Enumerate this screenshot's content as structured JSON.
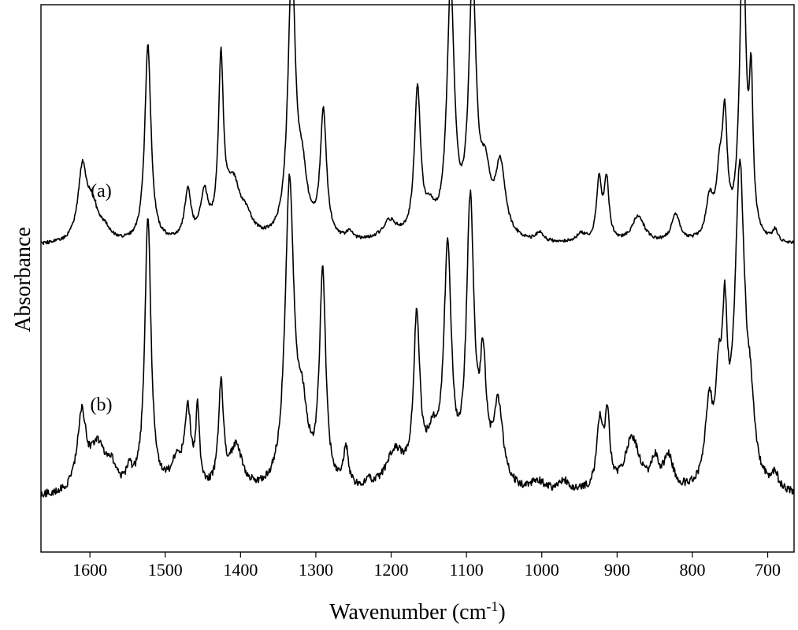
{
  "chart_data": {
    "type": "line",
    "title": "",
    "xlabel": "Wavenumber (cm",
    "xlabel_sup": "-1",
    "xlabel_close": ")",
    "ylabel": "Absorbance",
    "xlim": [
      1665,
      665
    ],
    "x_reversed": true,
    "y_ticks_shown": false,
    "grid": false,
    "x_ticks": [
      1600,
      1500,
      1400,
      1300,
      1200,
      1100,
      1000,
      900,
      800,
      700
    ],
    "x_tick_labels": [
      "1600",
      "1500",
      "1400",
      "1300",
      "1200",
      "1100",
      "1000",
      "900",
      "800",
      "700"
    ],
    "series": [
      {
        "label": "(a)",
        "baseline": 0.56,
        "peaks": [
          {
            "x": 1610,
            "h": 0.13,
            "w": 7
          },
          {
            "x": 1597,
            "h": 0.06,
            "w": 9
          },
          {
            "x": 1580,
            "h": 0.02,
            "w": 10
          },
          {
            "x": 1523,
            "h": 0.36,
            "w": 5
          },
          {
            "x": 1470,
            "h": 0.09,
            "w": 5
          },
          {
            "x": 1448,
            "h": 0.08,
            "w": 6
          },
          {
            "x": 1426,
            "h": 0.31,
            "w": 4
          },
          {
            "x": 1410,
            "h": 0.1,
            "w": 12
          },
          {
            "x": 1392,
            "h": 0.03,
            "w": 10
          },
          {
            "x": 1332,
            "h": 0.49,
            "w": 6
          },
          {
            "x": 1318,
            "h": 0.1,
            "w": 8
          },
          {
            "x": 1290,
            "h": 0.23,
            "w": 5
          },
          {
            "x": 1255,
            "h": 0.015,
            "w": 5
          },
          {
            "x": 1202,
            "h": 0.035,
            "w": 12
          },
          {
            "x": 1165,
            "h": 0.27,
            "w": 5
          },
          {
            "x": 1148,
            "h": 0.04,
            "w": 8
          },
          {
            "x": 1121,
            "h": 0.45,
            "w": 6
          },
          {
            "x": 1092,
            "h": 0.46,
            "w": 6
          },
          {
            "x": 1075,
            "h": 0.1,
            "w": 8
          },
          {
            "x": 1055,
            "h": 0.13,
            "w": 8
          },
          {
            "x": 1003,
            "h": 0.015,
            "w": 6
          },
          {
            "x": 948,
            "h": 0.015,
            "w": 8
          },
          {
            "x": 924,
            "h": 0.11,
            "w": 4
          },
          {
            "x": 914,
            "h": 0.11,
            "w": 4
          },
          {
            "x": 872,
            "h": 0.05,
            "w": 10
          },
          {
            "x": 822,
            "h": 0.05,
            "w": 7
          },
          {
            "x": 777,
            "h": 0.07,
            "w": 6
          },
          {
            "x": 764,
            "h": 0.1,
            "w": 5
          },
          {
            "x": 757,
            "h": 0.2,
            "w": 4
          },
          {
            "x": 733,
            "h": 0.55,
            "w": 5
          },
          {
            "x": 722,
            "h": 0.25,
            "w": 3
          },
          {
            "x": 690,
            "h": 0.02,
            "w": 4
          }
        ]
      },
      {
        "label": "(b)",
        "baseline": 0.1,
        "peaks": [
          {
            "x": 1611,
            "h": 0.14,
            "w": 7
          },
          {
            "x": 1590,
            "h": 0.08,
            "w": 12
          },
          {
            "x": 1572,
            "h": 0.04,
            "w": 8
          },
          {
            "x": 1548,
            "h": 0.03,
            "w": 5
          },
          {
            "x": 1523,
            "h": 0.5,
            "w": 5
          },
          {
            "x": 1485,
            "h": 0.05,
            "w": 10
          },
          {
            "x": 1470,
            "h": 0.14,
            "w": 5
          },
          {
            "x": 1457,
            "h": 0.14,
            "w": 3
          },
          {
            "x": 1426,
            "h": 0.19,
            "w": 4
          },
          {
            "x": 1406,
            "h": 0.08,
            "w": 10
          },
          {
            "x": 1335,
            "h": 0.55,
            "w": 7
          },
          {
            "x": 1318,
            "h": 0.12,
            "w": 9
          },
          {
            "x": 1291,
            "h": 0.39,
            "w": 5
          },
          {
            "x": 1260,
            "h": 0.07,
            "w": 4
          },
          {
            "x": 1230,
            "h": 0.01,
            "w": 5
          },
          {
            "x": 1195,
            "h": 0.07,
            "w": 15
          },
          {
            "x": 1166,
            "h": 0.3,
            "w": 5
          },
          {
            "x": 1145,
            "h": 0.08,
            "w": 10
          },
          {
            "x": 1125,
            "h": 0.42,
            "w": 6
          },
          {
            "x": 1095,
            "h": 0.51,
            "w": 6
          },
          {
            "x": 1078,
            "h": 0.2,
            "w": 5
          },
          {
            "x": 1058,
            "h": 0.15,
            "w": 8
          },
          {
            "x": 1005,
            "h": 0.02,
            "w": 10
          },
          {
            "x": 970,
            "h": 0.02,
            "w": 10
          },
          {
            "x": 923,
            "h": 0.12,
            "w": 5
          },
          {
            "x": 913,
            "h": 0.13,
            "w": 4
          },
          {
            "x": 880,
            "h": 0.1,
            "w": 12
          },
          {
            "x": 850,
            "h": 0.05,
            "w": 6
          },
          {
            "x": 832,
            "h": 0.06,
            "w": 8
          },
          {
            "x": 778,
            "h": 0.14,
            "w": 6
          },
          {
            "x": 765,
            "h": 0.16,
            "w": 5
          },
          {
            "x": 757,
            "h": 0.25,
            "w": 4
          },
          {
            "x": 737,
            "h": 0.58,
            "w": 8
          },
          {
            "x": 723,
            "h": 0.1,
            "w": 6
          },
          {
            "x": 690,
            "h": 0.03,
            "w": 4
          }
        ]
      }
    ]
  }
}
